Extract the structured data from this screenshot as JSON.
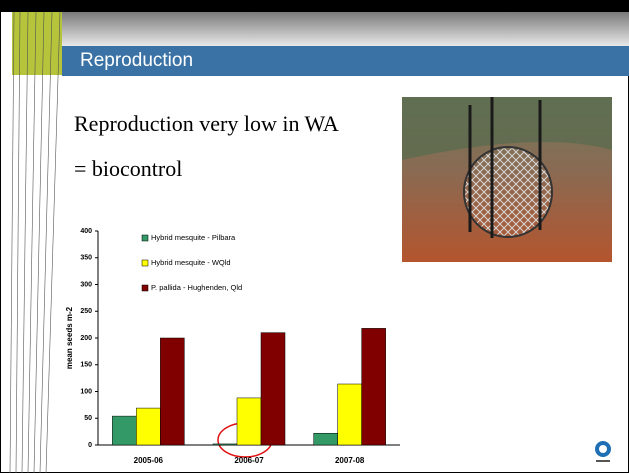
{
  "slide": {
    "title": "Reproduction",
    "lines": [
      "Reproduction very low in WA",
      "= biocontrol"
    ]
  },
  "chart_data": {
    "type": "bar",
    "y_label": "mean seeds m-2",
    "categories": [
      "2005-06",
      "2006-07",
      "2007-08"
    ],
    "series": [
      {
        "name": "Hybrid mesquite - Pilbara",
        "color": "#339966",
        "values": [
          54,
          2,
          22
        ]
      },
      {
        "name": "Hybrid mesquite - WQld",
        "color": "#ffff00",
        "values": [
          69,
          88,
          114
        ]
      },
      {
        "name": "P. pallida - Hughenden, Qld",
        "color": "#800000",
        "values": [
          200,
          210,
          218
        ]
      }
    ],
    "ylim": [
      0,
      400
    ],
    "yticks": [
      0,
      50,
      100,
      150,
      200,
      250,
      300,
      350,
      400
    ],
    "legend": "upper-left"
  }
}
